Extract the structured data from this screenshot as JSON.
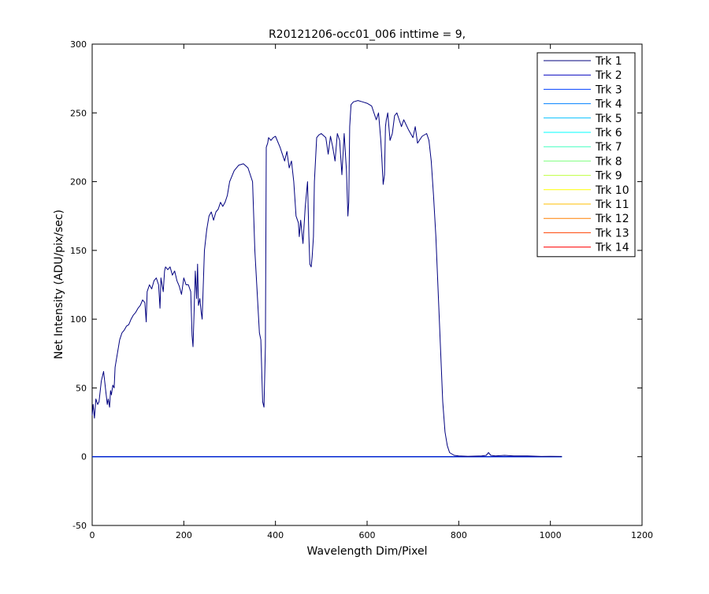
{
  "chart_data": {
    "type": "line",
    "title": "R20121206-occ01_006 inttime = 9,",
    "xlabel": "Wavelength Dim/Pixel",
    "ylabel": "Net Intensity (ADU/pix/sec)",
    "xlim": [
      0,
      1200
    ],
    "ylim": [
      -50,
      300
    ],
    "xticks": [
      0,
      200,
      400,
      600,
      800,
      1000,
      1200
    ],
    "yticks": [
      -50,
      0,
      50,
      100,
      150,
      200,
      250,
      300
    ],
    "grid": false,
    "legend_position": "top-right",
    "series": [
      {
        "name": "Trk 1",
        "color": "#00007f",
        "x": [
          0,
          2,
          5,
          8,
          12,
          15,
          20,
          25,
          30,
          33,
          35,
          38,
          40,
          42,
          45,
          48,
          50,
          55,
          60,
          65,
          70,
          75,
          80,
          85,
          90,
          95,
          100,
          105,
          110,
          115,
          118,
          120,
          125,
          130,
          135,
          140,
          145,
          148,
          150,
          155,
          158,
          160,
          165,
          170,
          175,
          180,
          185,
          190,
          195,
          200,
          205,
          210,
          215,
          218,
          220,
          222,
          225,
          228,
          230,
          232,
          235,
          238,
          240,
          245,
          250,
          255,
          260,
          265,
          270,
          275,
          280,
          285,
          290,
          295,
          300,
          310,
          320,
          330,
          340,
          350,
          355,
          360,
          365,
          368,
          372,
          375,
          378,
          380,
          383,
          385,
          390,
          395,
          400,
          410,
          415,
          420,
          425,
          430,
          435,
          440,
          445,
          450,
          452,
          455,
          458,
          460,
          465,
          470,
          473,
          475,
          478,
          480,
          483,
          485,
          490,
          495,
          500,
          510,
          515,
          520,
          525,
          530,
          535,
          540,
          545,
          550,
          555,
          558,
          560,
          562,
          565,
          570,
          580,
          590,
          600,
          610,
          620,
          625,
          630,
          632,
          635,
          638,
          640,
          642,
          645,
          650,
          655,
          660,
          665,
          670,
          675,
          680,
          690,
          700,
          705,
          710,
          720,
          730,
          735,
          740,
          745,
          750,
          755,
          760,
          765,
          770,
          775,
          780,
          790,
          800,
          820,
          850,
          860,
          865,
          870,
          880,
          900,
          920,
          950,
          980,
          1000,
          1020,
          1025
        ],
        "y": [
          30,
          38,
          28,
          42,
          38,
          40,
          55,
          62,
          47,
          38,
          42,
          36,
          48,
          45,
          52,
          50,
          65,
          75,
          85,
          90,
          92,
          95,
          96,
          100,
          103,
          105,
          108,
          110,
          114,
          112,
          98,
          120,
          125,
          122,
          128,
          130,
          125,
          108,
          130,
          120,
          135,
          138,
          136,
          138,
          132,
          135,
          128,
          124,
          118,
          130,
          125,
          125,
          120,
          88,
          80,
          100,
          135,
          115,
          140,
          110,
          115,
          105,
          100,
          150,
          165,
          175,
          178,
          172,
          178,
          180,
          185,
          182,
          185,
          190,
          200,
          208,
          212,
          213,
          210,
          200,
          150,
          120,
          90,
          85,
          40,
          36,
          80,
          225,
          228,
          232,
          230,
          232,
          233,
          225,
          220,
          215,
          222,
          210,
          215,
          200,
          175,
          170,
          160,
          172,
          162,
          155,
          182,
          200,
          160,
          140,
          138,
          145,
          160,
          200,
          232,
          234,
          235,
          232,
          220,
          233,
          225,
          215,
          235,
          230,
          205,
          235,
          208,
          175,
          185,
          240,
          256,
          258,
          259,
          258,
          257,
          255,
          245,
          250,
          230,
          218,
          198,
          205,
          240,
          245,
          250,
          230,
          235,
          248,
          250,
          245,
          240,
          245,
          238,
          232,
          240,
          228,
          233,
          235,
          230,
          215,
          190,
          160,
          120,
          80,
          40,
          18,
          8,
          3,
          1,
          0.5,
          0.3,
          0.5,
          1,
          3,
          1,
          0.5,
          1,
          0.5,
          0.5,
          0.2,
          0.3,
          0.2,
          0.2
        ]
      },
      {
        "name": "Trk 2",
        "color": "#0000bf",
        "x": [
          0,
          1025
        ],
        "y": [
          0,
          0
        ]
      },
      {
        "name": "Trk 3",
        "color": "#0040ff",
        "x": [
          0,
          1025
        ],
        "y": [
          0,
          0
        ]
      },
      {
        "name": "Trk 4",
        "color": "#0080ff",
        "x": [
          0,
          1025
        ],
        "y": [
          0,
          0
        ]
      },
      {
        "name": "Trk 5",
        "color": "#00bfff",
        "x": [
          0,
          1025
        ],
        "y": [
          0,
          0
        ]
      },
      {
        "name": "Trk 6",
        "color": "#00ffff",
        "x": [
          0,
          1025
        ],
        "y": [
          0,
          0
        ]
      },
      {
        "name": "Trk 7",
        "color": "#40ffbf",
        "x": [
          0,
          1025
        ],
        "y": [
          0,
          0
        ]
      },
      {
        "name": "Trk 8",
        "color": "#80ff80",
        "x": [
          0,
          1025
        ],
        "y": [
          0,
          0
        ]
      },
      {
        "name": "Trk 9",
        "color": "#bfff40",
        "x": [
          0,
          1025
        ],
        "y": [
          0,
          0
        ]
      },
      {
        "name": "Trk 10",
        "color": "#ffff00",
        "x": [
          0,
          1025
        ],
        "y": [
          0,
          0
        ]
      },
      {
        "name": "Trk 11",
        "color": "#ffbf00",
        "x": [
          0,
          1025
        ],
        "y": [
          0,
          0
        ]
      },
      {
        "name": "Trk 12",
        "color": "#ff8000",
        "x": [
          0,
          1025
        ],
        "y": [
          0,
          0
        ]
      },
      {
        "name": "Trk 13",
        "color": "#ff4000",
        "x": [
          0,
          1025
        ],
        "y": [
          0,
          0
        ]
      },
      {
        "name": "Trk 14",
        "color": "#ff0000",
        "x": [
          0,
          1025
        ],
        "y": [
          0,
          0
        ]
      }
    ]
  }
}
